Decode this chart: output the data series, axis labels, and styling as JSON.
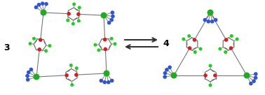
{
  "background_color": "#ffffff",
  "label_3": "3",
  "label_4": "4",
  "label_fontsize": 9,
  "arrow_color": "#333333",
  "atom_colors": {
    "C": "#b0b0b0",
    "N": "#3355cc",
    "O": "#cc2222",
    "F": "#22cc22",
    "metal": "#22aa22"
  },
  "fig_width": 3.78,
  "fig_height": 1.36,
  "dpi": 100
}
